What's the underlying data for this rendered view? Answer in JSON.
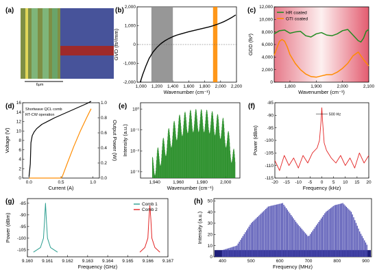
{
  "figure": {
    "panel_labels": [
      "(a)",
      "(b)",
      "(c)",
      "(d)",
      "(e)",
      "(f)",
      "(g)",
      "(h)"
    ]
  },
  "photo": {
    "scale_bar_label": "6μm"
  },
  "chart_data": [
    {
      "panel": "b",
      "type": "line",
      "xlabel": "Wavenumber (cm⁻¹)",
      "ylabel": "GVD (fs²/mm)",
      "xlim": [
        950,
        2200
      ],
      "ylim": [
        -2000,
        2000
      ],
      "xticks": [
        1000,
        1200,
        1400,
        1600,
        1800,
        2000,
        2200
      ],
      "xtick_labels": [
        "1,000",
        "1,200",
        "1,400",
        "1,600",
        "1,800",
        "2,000",
        "2,200"
      ],
      "yticks": [
        -2000,
        -1000,
        0,
        1000,
        2000
      ],
      "ytick_labels": [
        "-2,000",
        "-1,000",
        "0",
        "1,000",
        "2,000"
      ],
      "bands": [
        {
          "from": 1130,
          "to": 1400,
          "color": "#8c8c8c"
        },
        {
          "from": 1905,
          "to": 1960,
          "color": "#ff8c00"
        }
      ],
      "series": [
        {
          "color": "#000000",
          "x": [
            990,
            1020,
            1060,
            1100,
            1150,
            1200,
            1250,
            1300,
            1350,
            1400,
            1450,
            1500,
            1550,
            1600,
            1650,
            1700,
            1750,
            1800,
            1850,
            1900,
            1950,
            2000,
            2050,
            2100,
            2150,
            2190
          ],
          "y": [
            -2000,
            -1600,
            -1150,
            -750,
            -400,
            -150,
            50,
            200,
            320,
            420,
            500,
            560,
            620,
            680,
            730,
            780,
            830,
            880,
            930,
            990,
            1060,
            1140,
            1230,
            1340,
            1460,
            1570
          ]
        }
      ]
    },
    {
      "panel": "c",
      "type": "line",
      "xlabel": "Wavenumber (cm⁻¹)",
      "ylabel": "GDD (fs²)",
      "xlim": [
        1740,
        2100
      ],
      "ylim": [
        0,
        12000
      ],
      "xticks": [
        1800,
        1900,
        2000,
        2100
      ],
      "xtick_labels": [
        "1,800",
        "1,900",
        "2,000",
        "2,100"
      ],
      "yticks": [
        0,
        2000,
        4000,
        6000,
        8000,
        10000,
        12000
      ],
      "ytick_labels": [
        "0",
        "2,000",
        "4,000",
        "6,000",
        "8,000",
        "10,000",
        "12,000"
      ],
      "legend_position": "top-left",
      "series": [
        {
          "name": "HR coated",
          "color": "#228b22",
          "x": [
            1740,
            1760,
            1780,
            1800,
            1820,
            1840,
            1860,
            1880,
            1900,
            1920,
            1940,
            1960,
            1980,
            2000,
            2020,
            2040,
            2060,
            2070,
            2080,
            2090,
            2100
          ],
          "y": [
            7700,
            8200,
            8300,
            7800,
            8000,
            8100,
            7400,
            7200,
            7700,
            7900,
            7500,
            7400,
            7700,
            8200,
            8400,
            7500,
            6600,
            6400,
            7000,
            8100,
            8400
          ]
        },
        {
          "name": "GTI coated",
          "color": "#ff8c00",
          "x": [
            1740,
            1760,
            1770,
            1780,
            1790,
            1800,
            1820,
            1840,
            1860,
            1880,
            1900,
            1920,
            1940,
            1960,
            1980,
            2000,
            2020,
            2040,
            2060,
            2080,
            2100
          ],
          "y": [
            4300,
            6500,
            6800,
            6500,
            5600,
            4400,
            3000,
            2000,
            1300,
            900,
            800,
            1000,
            1200,
            1200,
            1600,
            2200,
            3000,
            4200,
            4800,
            3600,
            2600
          ]
        }
      ]
    },
    {
      "panel": "d",
      "type": "line",
      "xlabel": "Current (A)",
      "ylabel": "Voltage (V)",
      "y2label": "Output Power (W)",
      "annotations": [
        "Shortwave QCL comb",
        "RT-CW operation"
      ],
      "xlim": [
        -0.1,
        1.1
      ],
      "ylim": [
        0,
        16
      ],
      "y2lim": [
        0,
        1.0
      ],
      "xticks": [
        0.0,
        0.5,
        1.0
      ],
      "xtick_labels": [
        "0.0",
        "0.5",
        "1.0"
      ],
      "yticks": [
        0,
        2,
        4,
        6,
        8,
        10,
        12,
        14,
        16
      ],
      "ytick_labels": [
        "0",
        "2",
        "4",
        "6",
        "8",
        "10",
        "12",
        "14",
        "16"
      ],
      "y2ticks": [
        0,
        0.2,
        0.4,
        0.6,
        0.8,
        1.0
      ],
      "y2tick_labels": [
        "0.0",
        "0.2",
        "0.4",
        "0.6",
        "0.8",
        "1.0"
      ],
      "series": [
        {
          "axis": "left",
          "color": "#000000",
          "x": [
            0.0,
            0.02,
            0.03,
            0.05,
            0.08,
            0.12,
            0.2,
            0.3,
            0.4,
            0.5,
            0.6,
            0.7,
            0.8,
            0.9,
            0.97
          ],
          "y": [
            0.3,
            3,
            7.5,
            9,
            9.8,
            10.5,
            11.4,
            12.1,
            12.8,
            13.4,
            14.0,
            14.6,
            15.2,
            15.8,
            16.3
          ]
        },
        {
          "axis": "right",
          "color": "#ff8c00",
          "x": [
            0.0,
            0.5,
            0.52,
            0.6,
            0.7,
            0.8,
            0.9,
            0.97
          ],
          "y": [
            0.0,
            0.0,
            0.02,
            0.2,
            0.42,
            0.62,
            0.8,
            0.92
          ]
        }
      ]
    },
    {
      "panel": "e",
      "type": "line",
      "xlabel": "Wavenumber (cm⁻¹)",
      "ylabel": "Intensity (a.u.)",
      "xlim": [
        1928,
        2012
      ],
      "ylim_log10": [
        -3.3,
        0.3
      ],
      "yscale": "log",
      "xticks": [
        1940,
        1960,
        1980,
        2000
      ],
      "xtick_labels": [
        "1,940",
        "1,960",
        "1,980",
        "2,000"
      ],
      "yticks_log10": [
        0,
        -1,
        -2,
        -3
      ],
      "ytick_labels": [
        "10⁰",
        "10⁻¹",
        "10⁻²",
        "10⁻³"
      ],
      "series": [
        {
          "color": "#228b22",
          "x": [
            1938,
            1945,
            1952,
            1960,
            1968,
            1975,
            1983,
            1990,
            1998,
            2004,
            2008
          ],
          "y": [
            0.002,
            0.01,
            0.05,
            0.2,
            0.35,
            0.4,
            0.38,
            0.3,
            0.15,
            0.02,
            0.003
          ]
        }
      ]
    },
    {
      "panel": "f",
      "type": "line",
      "xlabel": "Frequency (kHz)",
      "ylabel": "Power (dBm)",
      "annotation": "500 Hz",
      "xlim": [
        -20,
        20
      ],
      "ylim": [
        -115,
        -85
      ],
      "xticks": [
        -20,
        -15,
        -10,
        -5,
        0,
        5,
        10,
        15,
        20
      ],
      "xtick_labels": [
        "-20",
        "-15",
        "-10",
        "-5",
        "0",
        "5",
        "10",
        "15",
        "20"
      ],
      "yticks": [
        -115,
        -110,
        -105,
        -100,
        -95,
        -90,
        -85
      ],
      "ytick_labels": [
        "-115",
        "-110",
        "-105",
        "-100",
        "-95",
        "-90",
        "-85"
      ],
      "series": [
        {
          "color": "#e32222",
          "x": [
            -20,
            -18,
            -16,
            -14,
            -12,
            -10,
            -8,
            -6,
            -4,
            -2,
            -1,
            -0.3,
            0,
            0.3,
            1,
            2,
            4,
            6,
            8,
            10,
            12,
            14,
            16,
            18,
            20
          ],
          "y": [
            -108,
            -112,
            -106,
            -110,
            -107,
            -111,
            -106,
            -109,
            -105,
            -103,
            -100,
            -92,
            -87,
            -92,
            -101,
            -104,
            -107,
            -109,
            -106,
            -110,
            -107,
            -111,
            -105,
            -109,
            -106
          ]
        }
      ]
    },
    {
      "panel": "g",
      "type": "line",
      "xlabel": "Frequency (GHz)",
      "ylabel": "Power (dBm)",
      "xlim": [
        9.16,
        9.167
      ],
      "ylim": [
        -108,
        -83
      ],
      "xticks": [
        9.16,
        9.161,
        9.162,
        9.163,
        9.164,
        9.165,
        9.166,
        9.167
      ],
      "xtick_labels": [
        "9.160",
        "9.161",
        "9.162",
        "9.163",
        "9.164",
        "9.165",
        "9.166",
        "9.167"
      ],
      "yticks": [
        -105,
        -100,
        -95,
        -90,
        -85
      ],
      "ytick_labels": [
        "-105",
        "-100",
        "-95",
        "-90",
        "-85"
      ],
      "legend_position": "top-right",
      "series": [
        {
          "name": "Comb 1",
          "color": "#2a9d8f",
          "x": [
            9.1603,
            9.16065,
            9.1608,
            9.16085,
            9.1609,
            9.16095,
            9.161,
            9.16115,
            9.1615
          ],
          "y": [
            -106,
            -104,
            -100,
            -93,
            -85,
            -93,
            -100,
            -104,
            -106
          ]
        },
        {
          "name": "Comb 2",
          "color": "#e32222",
          "x": [
            9.1656,
            9.16585,
            9.166,
            9.16605,
            9.1661,
            9.16615,
            9.1662,
            9.16635,
            9.1666
          ],
          "y": [
            -106,
            -104,
            -100,
            -92,
            -86,
            -92,
            -100,
            -104,
            -106
          ]
        }
      ]
    },
    {
      "panel": "h",
      "type": "bar",
      "xlabel": "Frequency (MHz)",
      "ylabel": "Intensity (a.u.)",
      "xlim": [
        370,
        920
      ],
      "ylim": [
        0,
        52
      ],
      "xticks": [
        400,
        500,
        600,
        700,
        800,
        900
      ],
      "xtick_labels": [
        "400",
        "500",
        "600",
        "700",
        "800",
        "900"
      ],
      "yticks": [
        0,
        10,
        20,
        30,
        40,
        50
      ],
      "ytick_labels": [
        "0",
        "10",
        "20",
        "30",
        "40",
        "50"
      ],
      "noise_floor": 6,
      "series": [
        {
          "color": "#4b4bb0",
          "x": [
            400,
            450,
            500,
            560,
            610,
            660,
            700,
            760,
            790,
            820,
            850,
            880,
            910
          ],
          "y": [
            6,
            10,
            30,
            45,
            48,
            30,
            18,
            40,
            46,
            48,
            40,
            22,
            8
          ]
        }
      ]
    }
  ]
}
